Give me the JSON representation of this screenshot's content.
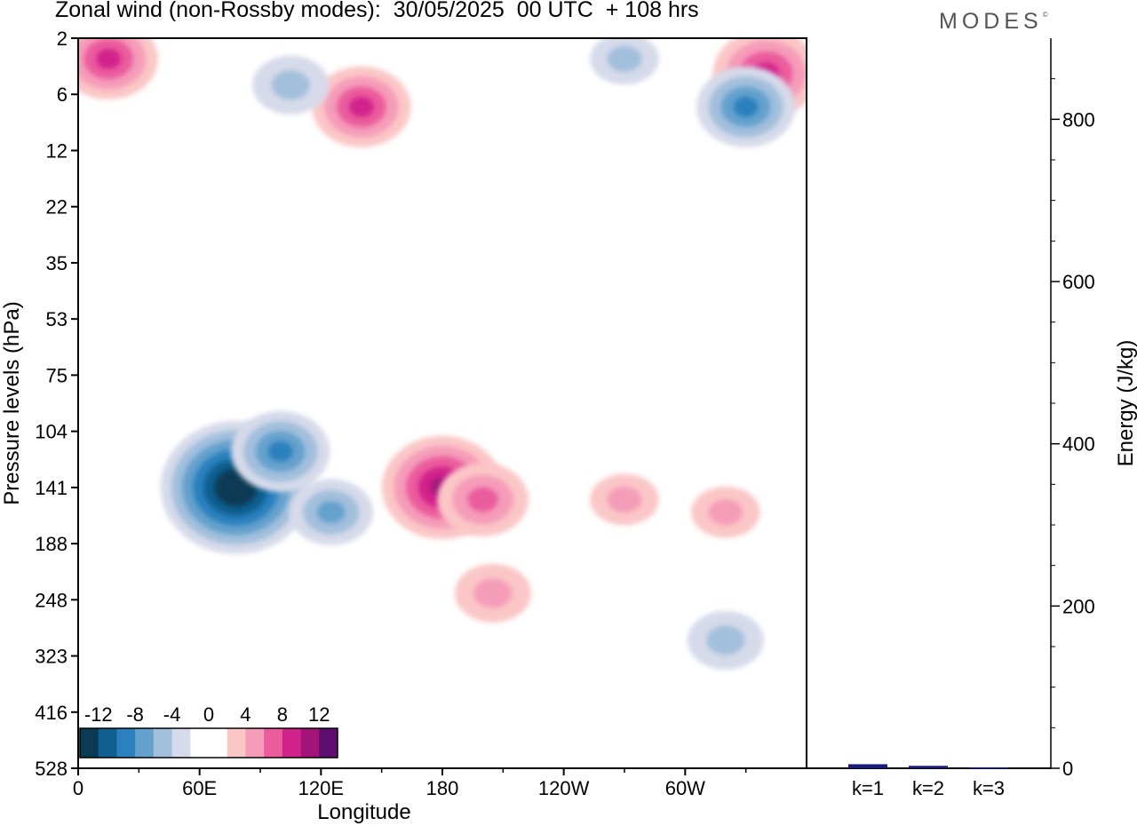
{
  "header": {
    "title": "Zonal wind (non-Rossby modes):  30/05/2025  00 UTC  + 108 hrs",
    "brand": "MODES",
    "brand_mark": "©"
  },
  "chart_data": [
    {
      "type": "heatmap",
      "xlabel": "Longitude",
      "ylabel": "Pressure levels (hPa)",
      "x_ticks": [
        "0",
        "60E",
        "120E",
        "180",
        "120W",
        "60W"
      ],
      "y_ticks": [
        "2",
        "6",
        "12",
        "22",
        "35",
        "53",
        "75",
        "104",
        "141",
        "188",
        "248",
        "323",
        "416",
        "528"
      ],
      "colorbar": {
        "labels": [
          "-12",
          "-8",
          "-4",
          "0",
          "4",
          "8",
          "12"
        ],
        "levels": [
          -14,
          -12,
          -10,
          -8,
          -6,
          -4,
          -2,
          0,
          2,
          4,
          6,
          8,
          10,
          12,
          14
        ],
        "colors": [
          "#0b3a55",
          "#0f5f8f",
          "#2b80bd",
          "#65a1cd",
          "#a2bfdc",
          "#d6daea",
          "#ffffff",
          "#ffffff",
          "#fbc6c6",
          "#f59cb9",
          "#eb5c9d",
          "#d2238b",
          "#a31479",
          "#5e0e6e"
        ]
      },
      "features": [
        {
          "lon": 78,
          "lev": 141,
          "value": -15
        },
        {
          "lon": 100,
          "lev": 116,
          "value": -8
        },
        {
          "lon": 125,
          "lev": 160,
          "value": -6
        },
        {
          "lon": 180,
          "lev": 141,
          "value": 11
        },
        {
          "lon": 200,
          "lev": 150,
          "value": 7
        },
        {
          "lon": 205,
          "lev": 240,
          "value": 5
        },
        {
          "lon": 270,
          "lev": 150,
          "value": 4
        },
        {
          "lon": 320,
          "lev": 160,
          "value": 4
        },
        {
          "lon": 15,
          "lev": 3,
          "value": 8
        },
        {
          "lon": 140,
          "lev": 7,
          "value": 8
        },
        {
          "lon": 340,
          "lev": 4,
          "value": 9
        },
        {
          "lon": 330,
          "lev": 7,
          "value": -8
        },
        {
          "lon": 105,
          "lev": 5,
          "value": -5
        },
        {
          "lon": 270,
          "lev": 3,
          "value": -4
        },
        {
          "lon": 320,
          "lev": 300,
          "value": -5
        }
      ]
    },
    {
      "type": "bar",
      "categories": [
        "k=1",
        "k=2",
        "k=3"
      ],
      "values": [
        5,
        3,
        1
      ],
      "ylabel": "Energy (J/kg)",
      "ylim": [
        0,
        900
      ],
      "y_ticks": [
        "0",
        "200",
        "400",
        "600",
        "800"
      ],
      "color": "#1a1a80"
    }
  ]
}
